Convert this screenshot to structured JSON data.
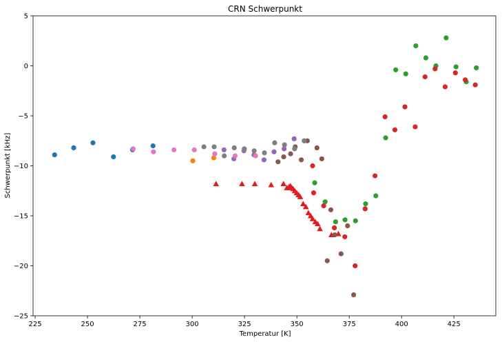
{
  "chart_data": {
    "type": "scatter",
    "title": "CRN Schwerpunkt",
    "xlabel": "Temperatur [K]",
    "ylabel": "Schwerpunkt [kHz]",
    "xlim": [
      224,
      445
    ],
    "ylim": [
      -25,
      5
    ],
    "xticks": [
      225,
      250,
      275,
      300,
      325,
      350,
      375,
      400,
      425
    ],
    "yticks": [
      5,
      0,
      -5,
      -10,
      -15,
      -20,
      -25
    ],
    "grid": false,
    "series": [
      {
        "color": "#1f77b4",
        "marker": "circle",
        "points": [
          [
            234.3,
            -8.9
          ],
          [
            243.4,
            -8.2
          ],
          [
            252.6,
            -7.7
          ],
          [
            262.4,
            -9.1
          ],
          [
            271.5,
            -8.4
          ],
          [
            281.3,
            -8.0
          ]
        ]
      },
      {
        "color": "#ff7f0e",
        "marker": "circle",
        "points": [
          [
            300.3,
            -9.5
          ],
          [
            310.3,
            -9.2
          ]
        ]
      },
      {
        "color": "#2ca02c",
        "marker": "circle",
        "points": [
          [
            358.5,
            -11.7
          ],
          [
            363.5,
            -13.6
          ],
          [
            368.5,
            -15.6
          ],
          [
            373.0,
            -15.4
          ],
          [
            378.0,
            -15.5
          ],
          [
            382.8,
            -13.8
          ],
          [
            387.7,
            -13.0
          ],
          [
            392.4,
            -7.2
          ],
          [
            397.2,
            -0.4
          ],
          [
            402.0,
            -0.8
          ],
          [
            406.8,
            2.0
          ],
          [
            411.6,
            0.8
          ],
          [
            416.4,
            0.0
          ],
          [
            421.3,
            2.8
          ],
          [
            426.0,
            -0.1
          ],
          [
            430.9,
            -1.6
          ],
          [
            435.7,
            -0.2
          ]
        ]
      },
      {
        "color": "#d62728",
        "marker": "circle",
        "points": [
          [
            357.5,
            -10.0
          ],
          [
            358.0,
            -12.7
          ],
          [
            362.8,
            -14.0
          ],
          [
            367.9,
            -16.2
          ],
          [
            372.9,
            -17.1
          ],
          [
            377.8,
            -20.0
          ],
          [
            382.6,
            -14.3
          ],
          [
            387.3,
            -11.0
          ],
          [
            392.1,
            -5.1
          ],
          [
            396.8,
            -6.4
          ],
          [
            401.6,
            -4.1
          ],
          [
            406.5,
            -6.1
          ],
          [
            411.2,
            -1.1
          ],
          [
            416.0,
            -0.3
          ],
          [
            420.8,
            -2.1
          ],
          [
            425.7,
            -0.7
          ],
          [
            430.4,
            -1.4
          ],
          [
            435.2,
            -1.9
          ]
        ]
      },
      {
        "color": "#e41a1c",
        "marker": "triangle",
        "points": [
          [
            311.4,
            -11.8
          ],
          [
            323.8,
            -11.8
          ],
          [
            329.9,
            -11.8
          ],
          [
            337.7,
            -11.9
          ],
          [
            343.6,
            -11.8
          ],
          [
            345.2,
            -12.2
          ],
          [
            346.2,
            -12.1
          ],
          [
            346.9,
            -12.0
          ],
          [
            347.6,
            -12.2
          ],
          [
            348.2,
            -12.3
          ],
          [
            349.0,
            -12.5
          ],
          [
            349.9,
            -12.7
          ],
          [
            350.8,
            -12.9
          ],
          [
            351.6,
            -13.1
          ],
          [
            353.0,
            -13.8
          ],
          [
            354.3,
            -14.1
          ],
          [
            355.5,
            -14.7
          ],
          [
            356.6,
            -15.0
          ],
          [
            357.5,
            -15.3
          ],
          [
            358.8,
            -15.6
          ],
          [
            359.9,
            -15.8
          ],
          [
            361.0,
            -16.3
          ],
          [
            366.5,
            -16.9
          ],
          [
            369.8,
            -16.8
          ]
        ]
      },
      {
        "color": "#9467bd",
        "marker": "circle",
        "points": [
          [
            315.2,
            -8.4
          ],
          [
            319.9,
            -9.3
          ],
          [
            324.7,
            -8.5
          ],
          [
            329.5,
            -8.9
          ],
          [
            334.3,
            -9.4
          ],
          [
            339.1,
            -8.6
          ],
          [
            343.9,
            -8.3
          ],
          [
            348.7,
            -7.3
          ],
          [
            353.5,
            -7.5
          ]
        ]
      },
      {
        "color": "#8c564b",
        "marker": "circle",
        "points": [
          [
            341.0,
            -9.6
          ],
          [
            343.7,
            -9.1
          ],
          [
            347.0,
            -8.8
          ],
          [
            349.2,
            -8.1
          ],
          [
            352.1,
            -9.4
          ],
          [
            355.0,
            -7.5
          ],
          [
            359.6,
            -8.2
          ],
          [
            361.9,
            -9.3
          ],
          [
            364.5,
            -19.5
          ],
          [
            366.2,
            -14.4
          ],
          [
            368.1,
            -16.9
          ],
          [
            371.1,
            -18.8
          ],
          [
            374.2,
            -16.0
          ],
          [
            377.1,
            -22.9
          ]
        ]
      },
      {
        "color": "#e377c2",
        "marker": "circle",
        "points": [
          [
            271.8,
            -8.3
          ],
          [
            281.5,
            -8.6
          ],
          [
            291.3,
            -8.4
          ],
          [
            301.0,
            -8.4
          ],
          [
            310.8,
            -8.8
          ],
          [
            320.5,
            -9.0
          ],
          [
            330.3,
            -9.0
          ]
        ]
      },
      {
        "color": "#7f7f7f",
        "marker": "circle",
        "points": [
          [
            305.6,
            -8.1
          ],
          [
            310.5,
            -8.1
          ],
          [
            315.3,
            -9.0
          ],
          [
            320.1,
            -8.2
          ],
          [
            324.9,
            -8.3
          ],
          [
            329.6,
            -8.5
          ],
          [
            334.5,
            -8.7
          ],
          [
            339.4,
            -7.7
          ],
          [
            344.1,
            -7.9
          ],
          [
            348.9,
            -8.3
          ],
          [
            353.5,
            -7.5
          ]
        ]
      }
    ]
  }
}
